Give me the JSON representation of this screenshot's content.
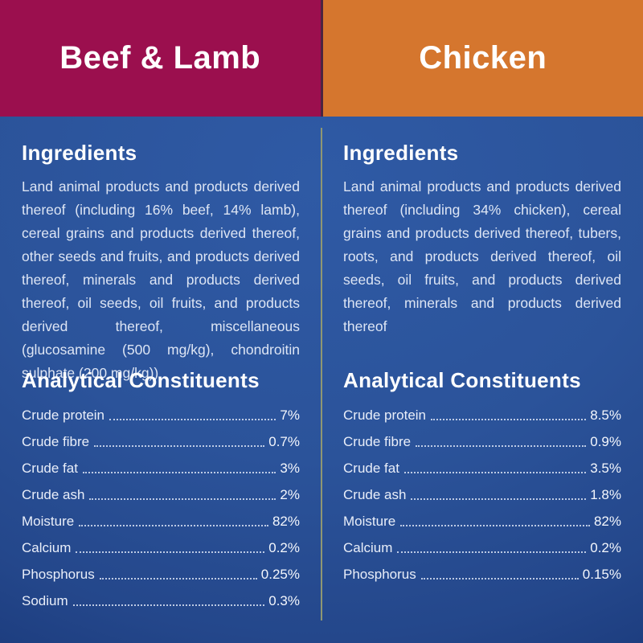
{
  "theme": {
    "header_left_color": "#9B0F4E",
    "header_right_color": "#D5762E",
    "header_gap_color": "#4C2340",
    "background_center": "#2B539A",
    "background_edge": "#112A60",
    "divider_line_color": "#8F9772",
    "body_text_color": "#DDE5F4",
    "heading_text_color": "#FFFFFF"
  },
  "columns": [
    {
      "title": "Beef & Lamb",
      "ingredients_heading": "Ingredients",
      "ingredients_text": "Land animal products and products derived thereof (including 16% beef, 14% lamb), cereal grains and products derived thereof, other seeds and fruits, and products derived thereof, minerals and products derived thereof, oil seeds, oil fruits, and products derived thereof, miscellaneous (glucosamine (500 mg/kg), chondroitin sulphate (200 mg/kg))",
      "analytical_heading": "Analytical Constituents",
      "constituents": [
        {
          "label": "Crude protein",
          "value": "7%"
        },
        {
          "label": "Crude fibre",
          "value": "0.7%"
        },
        {
          "label": "Crude fat",
          "value": "3%"
        },
        {
          "label": "Crude ash",
          "value": "2%"
        },
        {
          "label": "Moisture",
          "value": "82%"
        },
        {
          "label": "Calcium",
          "value": "0.2%"
        },
        {
          "label": "Phosphorus",
          "value": "0.25%"
        },
        {
          "label": "Sodium",
          "value": "0.3%"
        }
      ]
    },
    {
      "title": "Chicken",
      "ingredients_heading": "Ingredients",
      "ingredients_text": "Land animal products and products derived thereof (including 34% chicken), cereal grains and products derived thereof, tubers, roots, and products derived thereof, oil seeds, oil fruits, and products derived thereof, minerals and products derived thereof",
      "analytical_heading": "Analytical Constituents",
      "constituents": [
        {
          "label": "Crude protein",
          "value": "8.5%"
        },
        {
          "label": "Crude fibre",
          "value": "0.9%"
        },
        {
          "label": "Crude fat",
          "value": "3.5%"
        },
        {
          "label": "Crude ash",
          "value": "1.8%"
        },
        {
          "label": "Moisture",
          "value": "82%"
        },
        {
          "label": "Calcium",
          "value": "0.2%"
        },
        {
          "label": "Phosphorus",
          "value": "0.15%"
        }
      ]
    }
  ]
}
